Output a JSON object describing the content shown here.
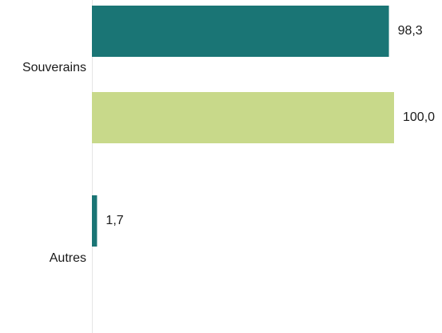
{
  "chart_data": {
    "type": "bar",
    "orientation": "horizontal",
    "categories": [
      "Souverains",
      "Autres"
    ],
    "series": [
      {
        "values": [
          98.3,
          1.7
        ],
        "color": "#1a7575"
      },
      {
        "values": [
          100.0,
          null
        ],
        "color": "#c8d98a"
      }
    ],
    "value_labels": [
      [
        "98,3",
        "1,7"
      ],
      [
        "100,0",
        ""
      ]
    ],
    "xlim": [
      0,
      100
    ],
    "title": "",
    "xlabel": "",
    "ylabel": "",
    "grid": false,
    "legend": "none"
  }
}
